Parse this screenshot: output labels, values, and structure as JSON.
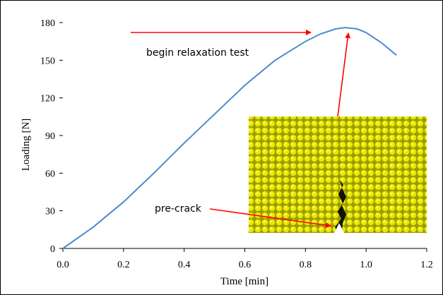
{
  "chart_data": {
    "type": "line",
    "xlabel": "Time [min]",
    "ylabel": "Loading [N]",
    "xlim": [
      0,
      1.2
    ],
    "ylim": [
      0,
      180
    ],
    "x_ticks": [
      "0.0",
      "0.2",
      "0.4",
      "0.6",
      "0.8",
      "1.0",
      "1.2"
    ],
    "y_ticks": [
      "0",
      "30",
      "60",
      "90",
      "120",
      "150",
      "180"
    ],
    "grid": false,
    "legend": "none",
    "series": [
      {
        "color": "#4a8ccf",
        "x": [
          0.0,
          0.1,
          0.2,
          0.3,
          0.4,
          0.5,
          0.6,
          0.7,
          0.8,
          0.85,
          0.9,
          0.93,
          0.97,
          1.0,
          1.05,
          1.1
        ],
        "y": [
          0,
          17,
          37,
          60,
          84,
          107,
          130,
          150,
          165,
          171,
          175,
          176,
          175,
          172,
          164,
          154
        ]
      }
    ],
    "annotations": [
      {
        "text": "begin relaxation test",
        "color": "#ff0000"
      },
      {
        "text": "pre-crack",
        "color": "#ff0000"
      }
    ],
    "inset": {
      "description_icon": "granular-specimen-image",
      "fill": "#e6e600",
      "crack_color": "#111111"
    }
  }
}
